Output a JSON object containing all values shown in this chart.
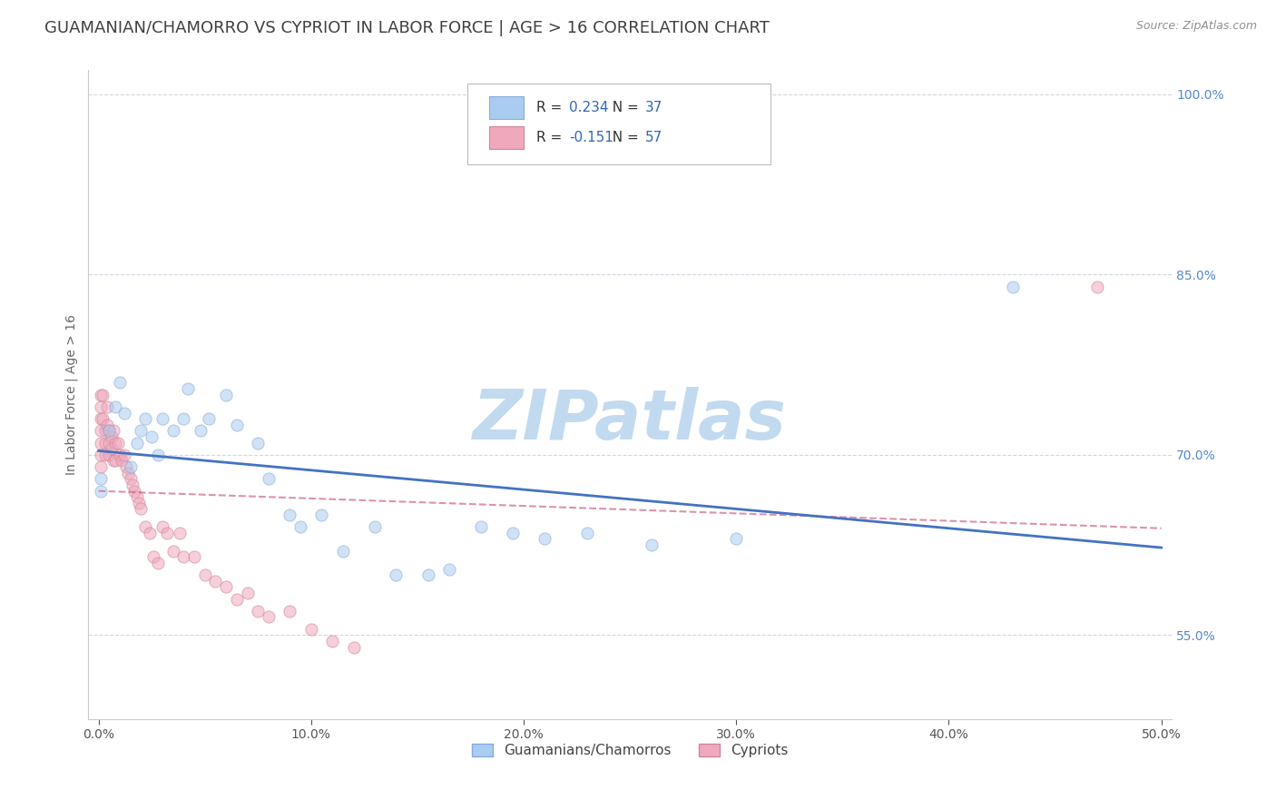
{
  "title": "GUAMANIAN/CHAMORRO VS CYPRIOT IN LABOR FORCE | AGE > 16 CORRELATION CHART",
  "source": "Source: ZipAtlas.com",
  "ylabel": "In Labor Force | Age > 16",
  "xlim": [
    -0.005,
    0.505
  ],
  "ylim": [
    0.48,
    1.02
  ],
  "xticks": [
    0.0,
    0.1,
    0.2,
    0.3,
    0.4,
    0.5
  ],
  "xticklabels": [
    "0.0%",
    "10.0%",
    "20.0%",
    "30.0%",
    "40.0%",
    "50.0%"
  ],
  "yticks": [
    0.55,
    0.7,
    0.85,
    1.0
  ],
  "yticklabels": [
    "55.0%",
    "70.0%",
    "85.0%",
    "100.0%"
  ],
  "watermark": "ZIPatlas",
  "watermark_color": "#b8d4ee",
  "series1_label": "Guamanians/Chamorros",
  "series1_color": "#aaccf0",
  "series1_edge_color": "#88aadd",
  "series1_R": 0.234,
  "series1_N": 37,
  "series2_label": "Cypriots",
  "series2_color": "#f0a8bc",
  "series2_edge_color": "#cc8899",
  "series2_R": -0.151,
  "series2_N": 57,
  "trend1_color": "#4472c4",
  "trend2_color": "#cc6688",
  "grid_color": "#d0d8e0",
  "background_color": "#ffffff",
  "title_color": "#404040",
  "source_color": "#909090",
  "guamanian_x": [
    0.001,
    0.001,
    0.005,
    0.008,
    0.01,
    0.012,
    0.015,
    0.018,
    0.02,
    0.022,
    0.025,
    0.028,
    0.03,
    0.035,
    0.04,
    0.042,
    0.048,
    0.052,
    0.06,
    0.065,
    0.075,
    0.08,
    0.09,
    0.095,
    0.105,
    0.115,
    0.13,
    0.14,
    0.155,
    0.165,
    0.18,
    0.195,
    0.21,
    0.23,
    0.26,
    0.3,
    0.43
  ],
  "guamanian_y": [
    0.67,
    0.68,
    0.72,
    0.74,
    0.76,
    0.735,
    0.69,
    0.71,
    0.72,
    0.73,
    0.715,
    0.7,
    0.73,
    0.72,
    0.73,
    0.755,
    0.72,
    0.73,
    0.75,
    0.725,
    0.71,
    0.68,
    0.65,
    0.64,
    0.65,
    0.62,
    0.64,
    0.6,
    0.6,
    0.605,
    0.64,
    0.635,
    0.63,
    0.635,
    0.625,
    0.63,
    0.84
  ],
  "cypriot_x": [
    0.001,
    0.001,
    0.001,
    0.001,
    0.001,
    0.001,
    0.001,
    0.002,
    0.002,
    0.003,
    0.003,
    0.003,
    0.004,
    0.004,
    0.005,
    0.005,
    0.005,
    0.006,
    0.006,
    0.007,
    0.007,
    0.008,
    0.008,
    0.009,
    0.01,
    0.011,
    0.012,
    0.013,
    0.014,
    0.015,
    0.016,
    0.017,
    0.018,
    0.019,
    0.02,
    0.022,
    0.024,
    0.026,
    0.028,
    0.03,
    0.032,
    0.035,
    0.038,
    0.04,
    0.045,
    0.05,
    0.055,
    0.06,
    0.065,
    0.07,
    0.075,
    0.08,
    0.09,
    0.1,
    0.11,
    0.12,
    0.47
  ],
  "cypriot_y": [
    0.75,
    0.74,
    0.73,
    0.72,
    0.71,
    0.7,
    0.69,
    0.75,
    0.73,
    0.72,
    0.71,
    0.7,
    0.74,
    0.725,
    0.72,
    0.71,
    0.7,
    0.715,
    0.705,
    0.72,
    0.695,
    0.71,
    0.695,
    0.71,
    0.7,
    0.695,
    0.7,
    0.69,
    0.685,
    0.68,
    0.675,
    0.67,
    0.665,
    0.66,
    0.655,
    0.64,
    0.635,
    0.615,
    0.61,
    0.64,
    0.635,
    0.62,
    0.635,
    0.615,
    0.615,
    0.6,
    0.595,
    0.59,
    0.58,
    0.585,
    0.57,
    0.565,
    0.57,
    0.555,
    0.545,
    0.54,
    0.84
  ],
  "marker_size": 90,
  "marker_alpha": 0.55,
  "title_fontsize": 13,
  "axis_label_fontsize": 10,
  "tick_fontsize": 10,
  "legend_fontsize": 11
}
